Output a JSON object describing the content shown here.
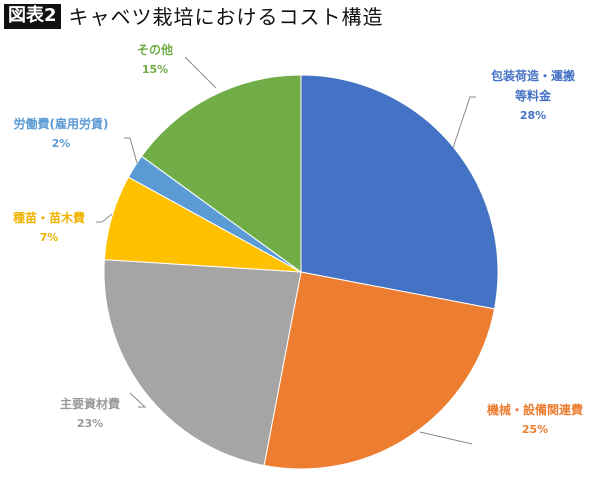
{
  "header": {
    "badge": "図表2",
    "title": "キャベツ栽培におけるコスト構造"
  },
  "chart_data": {
    "type": "pie",
    "title": "キャベツ栽培におけるコスト構造",
    "figure_label": "図表2",
    "start_angle_deg": 0,
    "direction": "clockwise",
    "categories": [
      "包装荷造・運搬等料金",
      "機械・設備関連費",
      "主要資材費",
      "種苗・苗木費",
      "労働費(雇用労賃)",
      "その他"
    ],
    "values": [
      28,
      25,
      23,
      7,
      2,
      15
    ],
    "unit": "%",
    "colors": [
      "#4472C4",
      "#ED7D31",
      "#A5A5A5",
      "#FFC000",
      "#5B9BD5",
      "#70AD47"
    ],
    "data_labels": [
      {
        "name_lines": [
          "包装荷造・運搬",
          "等料金"
        ],
        "pct": "28%"
      },
      {
        "name_lines": [
          "機械・設備関連費"
        ],
        "pct": "25%"
      },
      {
        "name_lines": [
          "主要資材費"
        ],
        "pct": "23%"
      },
      {
        "name_lines": [
          "種苗・苗木費"
        ],
        "pct": "7%"
      },
      {
        "name_lines": [
          "労働費(雇用労賃)"
        ],
        "pct": "2%"
      },
      {
        "name_lines": [
          "その他"
        ],
        "pct": "15%"
      }
    ],
    "label_colors": [
      "#4472C4",
      "#ED7D31",
      "#9A9A9A",
      "#F0B400",
      "#5B9BD5",
      "#70AD47"
    ],
    "legend": "none (data labels with leader lines)"
  }
}
